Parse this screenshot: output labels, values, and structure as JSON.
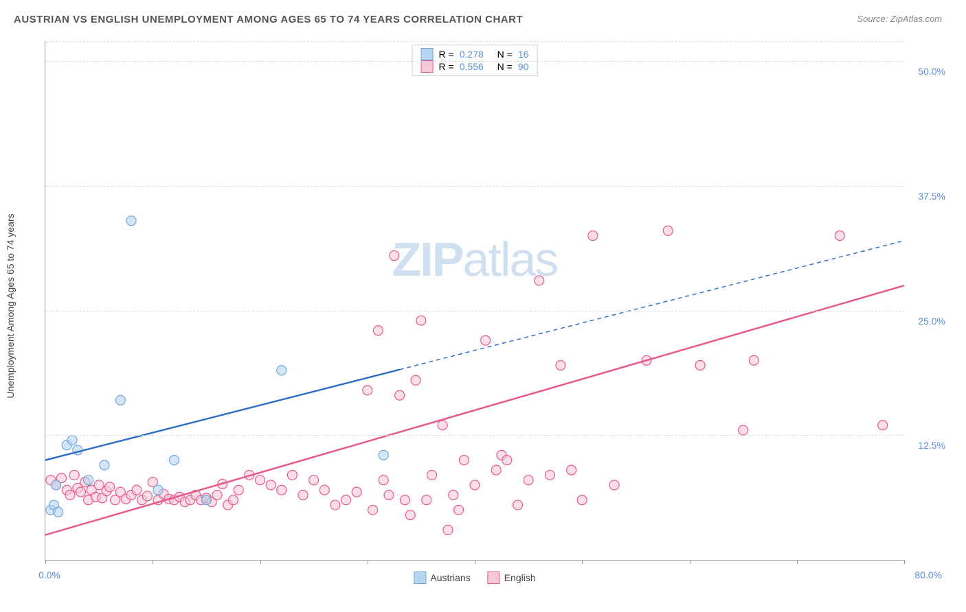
{
  "title": "AUSTRIAN VS ENGLISH UNEMPLOYMENT AMONG AGES 65 TO 74 YEARS CORRELATION CHART",
  "source": "Source: ZipAtlas.com",
  "y_axis_label": "Unemployment Among Ages 65 to 74 years",
  "watermark_a": "ZIP",
  "watermark_b": "atlas",
  "chart": {
    "type": "scatter",
    "background_color": "#ffffff",
    "grid_color": "#dddddd",
    "axis_color": "#999999",
    "xlim": [
      0,
      80
    ],
    "ylim": [
      0,
      52
    ],
    "y_ticks": [
      12.5,
      25.0,
      37.5,
      50.0
    ],
    "y_tick_labels": [
      "12.5%",
      "25.0%",
      "37.5%",
      "50.0%"
    ],
    "x_ticks": [
      0,
      10,
      20,
      30,
      40,
      50,
      60,
      70,
      80
    ],
    "x_min_label": "0.0%",
    "x_max_label": "80.0%",
    "series": [
      {
        "name": "Austrians",
        "color_fill": "#b8d4f0",
        "color_stroke": "#6ca8e0",
        "r_value": "0.278",
        "n_value": "16",
        "trend": {
          "x1": 0,
          "y1": 10,
          "x2": 80,
          "y2": 32,
          "solid_until_x": 33
        },
        "marker_radius": 7,
        "points": [
          [
            0.5,
            5.0
          ],
          [
            0.8,
            5.5
          ],
          [
            1.0,
            7.5
          ],
          [
            1.2,
            4.8
          ],
          [
            2.0,
            11.5
          ],
          [
            2.5,
            12.0
          ],
          [
            3.0,
            11.0
          ],
          [
            4.0,
            8.0
          ],
          [
            5.5,
            9.5
          ],
          [
            7.0,
            16.0
          ],
          [
            8.0,
            34.0
          ],
          [
            10.5,
            7.0
          ],
          [
            12.0,
            10.0
          ],
          [
            15.0,
            6.0
          ],
          [
            22.0,
            19.0
          ],
          [
            31.5,
            10.5
          ]
        ]
      },
      {
        "name": "English",
        "color_fill": "#f7cad6",
        "color_stroke": "#e65a88",
        "r_value": "0.556",
        "n_value": "90",
        "trend": {
          "x1": 0,
          "y1": 2.5,
          "x2": 80,
          "y2": 27.5,
          "solid_until_x": 80
        },
        "marker_radius": 7,
        "points": [
          [
            0.5,
            8.0
          ],
          [
            1.0,
            7.5
          ],
          [
            1.5,
            8.2
          ],
          [
            2.0,
            7.0
          ],
          [
            2.3,
            6.5
          ],
          [
            2.7,
            8.5
          ],
          [
            3.0,
            7.2
          ],
          [
            3.3,
            6.8
          ],
          [
            3.7,
            7.8
          ],
          [
            4.0,
            6.0
          ],
          [
            4.3,
            7.0
          ],
          [
            4.7,
            6.3
          ],
          [
            5.0,
            7.5
          ],
          [
            5.3,
            6.2
          ],
          [
            5.7,
            6.9
          ],
          [
            6.0,
            7.3
          ],
          [
            6.5,
            6.0
          ],
          [
            7.0,
            6.8
          ],
          [
            7.5,
            6.1
          ],
          [
            8.0,
            6.5
          ],
          [
            8.5,
            7.0
          ],
          [
            9.0,
            6.0
          ],
          [
            9.5,
            6.4
          ],
          [
            10.0,
            7.8
          ],
          [
            10.5,
            6.0
          ],
          [
            11.0,
            6.6
          ],
          [
            11.5,
            6.1
          ],
          [
            12.0,
            6.0
          ],
          [
            12.5,
            6.3
          ],
          [
            13.0,
            5.8
          ],
          [
            13.5,
            6.0
          ],
          [
            14.0,
            6.5
          ],
          [
            14.5,
            6.0
          ],
          [
            15.0,
            6.2
          ],
          [
            15.5,
            5.8
          ],
          [
            16.0,
            6.5
          ],
          [
            16.5,
            7.6
          ],
          [
            17.0,
            5.5
          ],
          [
            17.5,
            6.0
          ],
          [
            18.0,
            7.0
          ],
          [
            19.0,
            8.5
          ],
          [
            20.0,
            8.0
          ],
          [
            21.0,
            7.5
          ],
          [
            22.0,
            7.0
          ],
          [
            23.0,
            8.5
          ],
          [
            24.0,
            6.5
          ],
          [
            25.0,
            8.0
          ],
          [
            26.0,
            7.0
          ],
          [
            27.0,
            5.5
          ],
          [
            28.0,
            6.0
          ],
          [
            29.0,
            6.8
          ],
          [
            30.0,
            17.0
          ],
          [
            30.5,
            5.0
          ],
          [
            31.0,
            23.0
          ],
          [
            31.5,
            8.0
          ],
          [
            32.0,
            6.5
          ],
          [
            32.5,
            30.5
          ],
          [
            33.0,
            16.5
          ],
          [
            33.5,
            6.0
          ],
          [
            34.0,
            4.5
          ],
          [
            34.5,
            18.0
          ],
          [
            35.0,
            24.0
          ],
          [
            35.5,
            6.0
          ],
          [
            36.0,
            8.5
          ],
          [
            37.0,
            13.5
          ],
          [
            37.5,
            3.0
          ],
          [
            38.0,
            6.5
          ],
          [
            38.5,
            5.0
          ],
          [
            39.0,
            10.0
          ],
          [
            40.0,
            7.5
          ],
          [
            41.0,
            22.0
          ],
          [
            42.0,
            9.0
          ],
          [
            42.5,
            10.5
          ],
          [
            43.0,
            10.0
          ],
          [
            44.0,
            5.5
          ],
          [
            45.0,
            8.0
          ],
          [
            46.0,
            28.0
          ],
          [
            47.0,
            8.5
          ],
          [
            48.0,
            19.5
          ],
          [
            49.0,
            9.0
          ],
          [
            50.0,
            6.0
          ],
          [
            51.0,
            32.5
          ],
          [
            53.0,
            7.5
          ],
          [
            56.0,
            20.0
          ],
          [
            58.0,
            33.0
          ],
          [
            61.0,
            19.5
          ],
          [
            65.0,
            13.0
          ],
          [
            66.0,
            20.0
          ],
          [
            74.0,
            32.5
          ],
          [
            78.0,
            13.5
          ]
        ]
      }
    ]
  },
  "stat_labels": {
    "r": "R =",
    "n": "N ="
  },
  "legend_labels": [
    "Austrians",
    "English"
  ]
}
